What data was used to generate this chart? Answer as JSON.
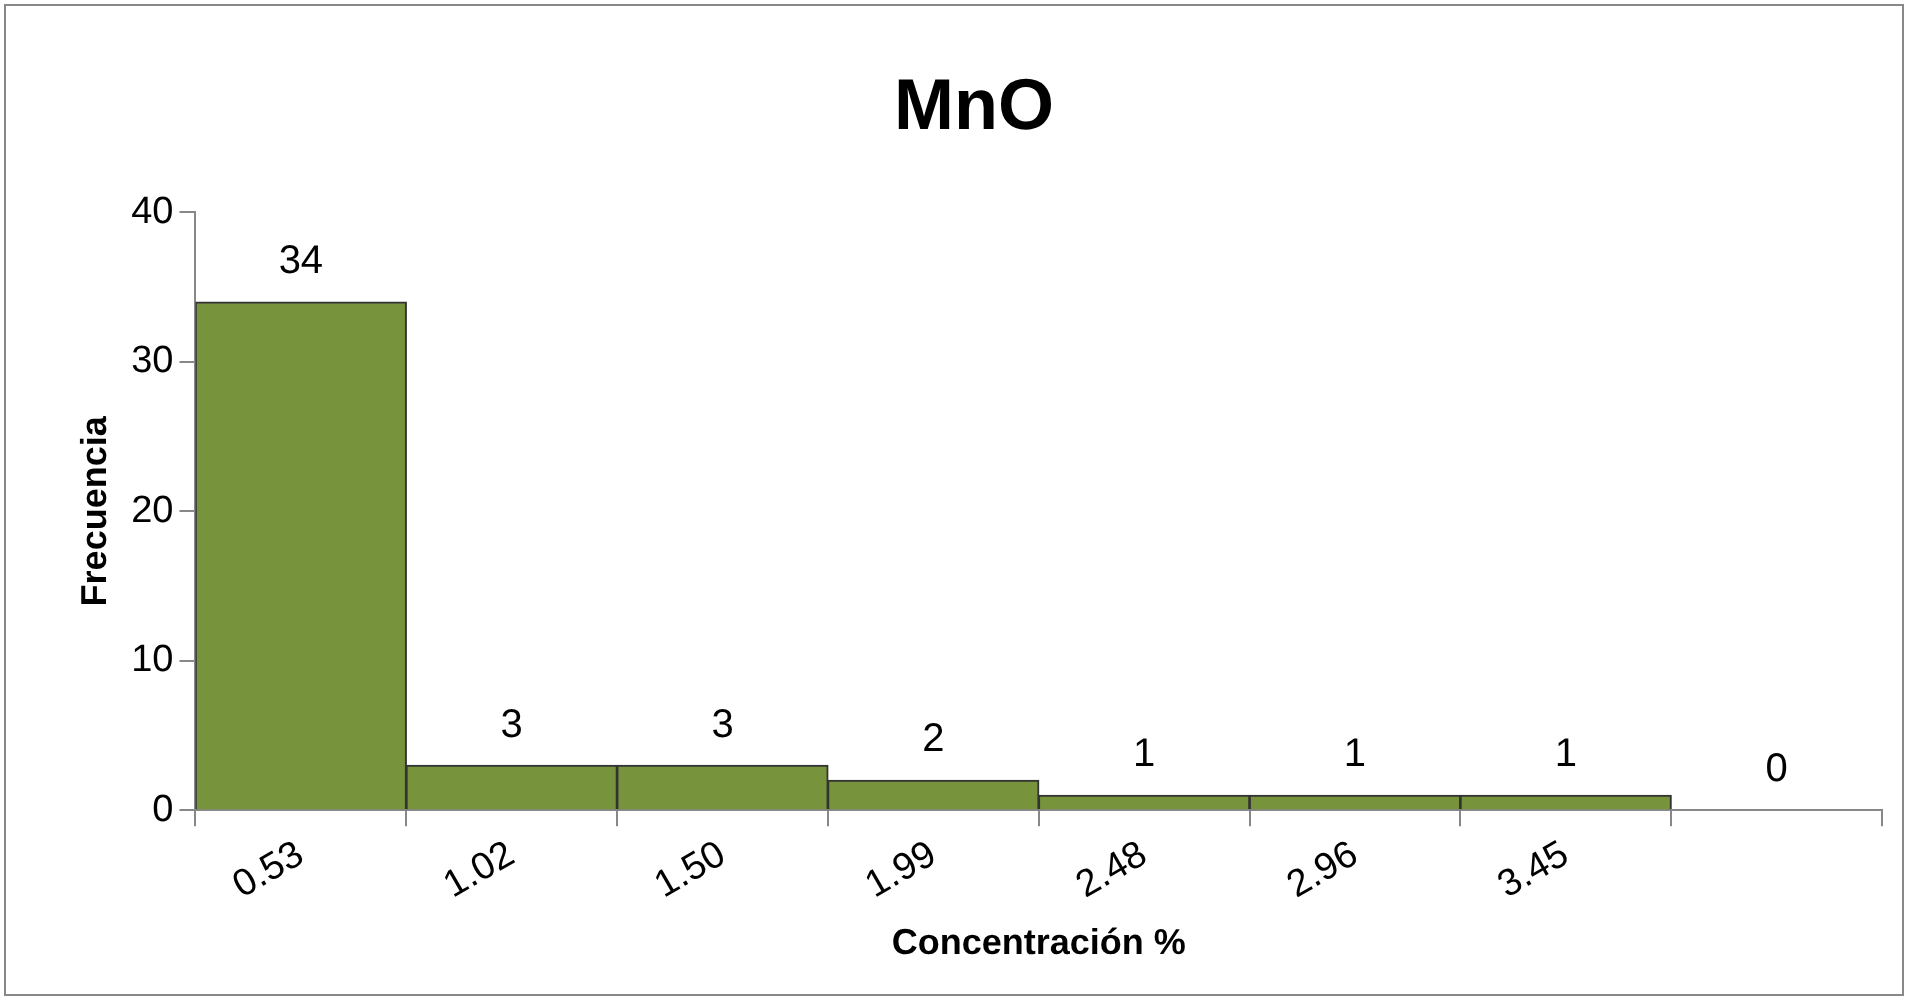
{
  "chart_data": {
    "type": "bar",
    "title": "MnO",
    "xlabel": "Concentración %",
    "ylabel": "Frecuencia",
    "categories": [
      "0.53",
      "1.02",
      "1.50",
      "1.99",
      "2.48",
      "2.96",
      "3.45",
      null
    ],
    "values": [
      34,
      3,
      3,
      2,
      1,
      1,
      1,
      0
    ],
    "color": "#77933c",
    "ylim": [
      0,
      40
    ],
    "yticks": [
      0,
      10,
      20,
      30,
      40
    ],
    "grid": false,
    "legend": false,
    "data_labels": true
  }
}
